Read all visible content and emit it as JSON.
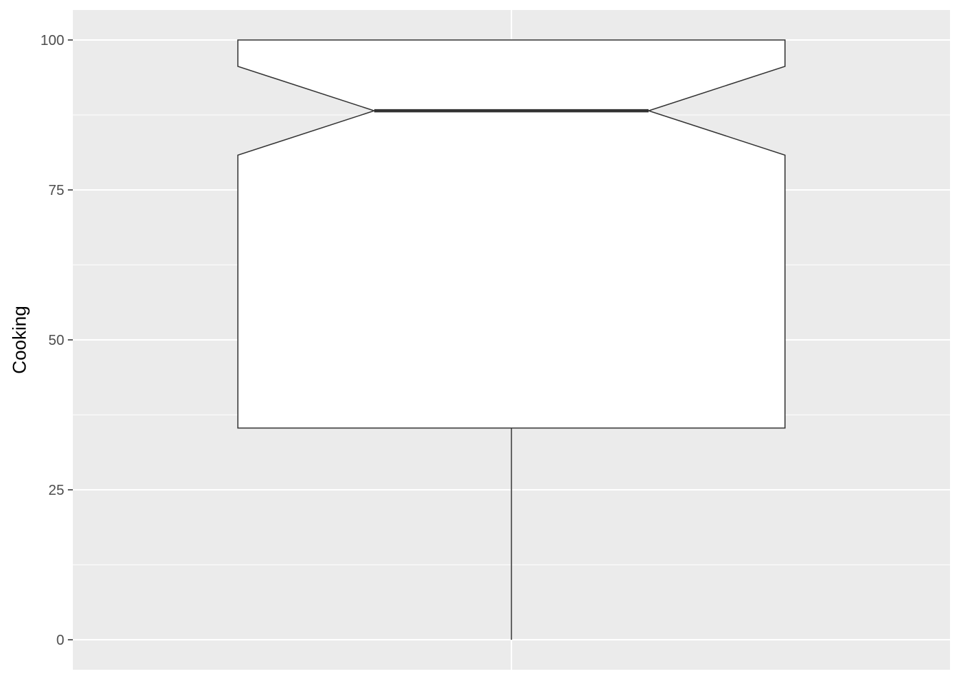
{
  "chart_data": {
    "type": "boxplot",
    "notched": true,
    "title": "",
    "xlabel": "",
    "ylabel": "Cooking",
    "ylim": [
      -5,
      105
    ],
    "y_ticks": [
      0,
      25,
      50,
      75,
      100
    ],
    "y_tick_labels": [
      "0",
      "25",
      "50",
      "75",
      "100"
    ],
    "grid": true,
    "legend": "none",
    "boxes": [
      {
        "min": 0,
        "q1": 35.3,
        "median": 88.2,
        "q3": 100,
        "max": 100,
        "notch_lower": 80.8,
        "notch_upper": 95.6
      }
    ],
    "colors": {
      "panel_background": "#ebebeb",
      "grid_line": "#ffffff",
      "box_fill": "#ffffff",
      "box_stroke": "#333333",
      "tick_text": "#4d4d4d",
      "tick_mark": "#333333",
      "axis_title": "#000000"
    }
  }
}
